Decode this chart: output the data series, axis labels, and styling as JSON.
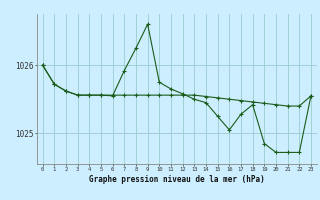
{
  "title": "Graphe pression niveau de la mer (hPa)",
  "background_color": "#cceeff",
  "grid_color": "#99cccc",
  "line_color": "#1a5c1a",
  "x_ticks": [
    0,
    1,
    2,
    3,
    4,
    5,
    6,
    7,
    8,
    9,
    10,
    11,
    12,
    13,
    14,
    15,
    16,
    17,
    18,
    19,
    20,
    21,
    22,
    23
  ],
  "y_ticks": [
    1025,
    1026
  ],
  "ylim": [
    1024.55,
    1026.75
  ],
  "xlim": [
    -0.5,
    23.5
  ],
  "line1_y": [
    1026.0,
    1025.72,
    1025.62,
    1025.56,
    1025.56,
    1025.56,
    1025.56,
    1025.56,
    1025.56,
    1025.56,
    1025.56,
    1025.56,
    1025.56,
    1025.56,
    1025.54,
    1025.52,
    1025.5,
    1025.48,
    1025.46,
    1025.44,
    1025.42,
    1025.4,
    1025.4,
    1025.55
  ],
  "line2_y": [
    1026.0,
    1025.72,
    1025.62,
    1025.56,
    1025.56,
    1025.56,
    1025.55,
    1025.92,
    1026.25,
    1026.6,
    1025.75,
    1025.65,
    1025.58,
    1025.5,
    1025.45,
    1025.25,
    1025.05,
    1025.28,
    1025.42,
    1024.85,
    1024.72,
    1024.72,
    1024.72,
    1025.55
  ]
}
